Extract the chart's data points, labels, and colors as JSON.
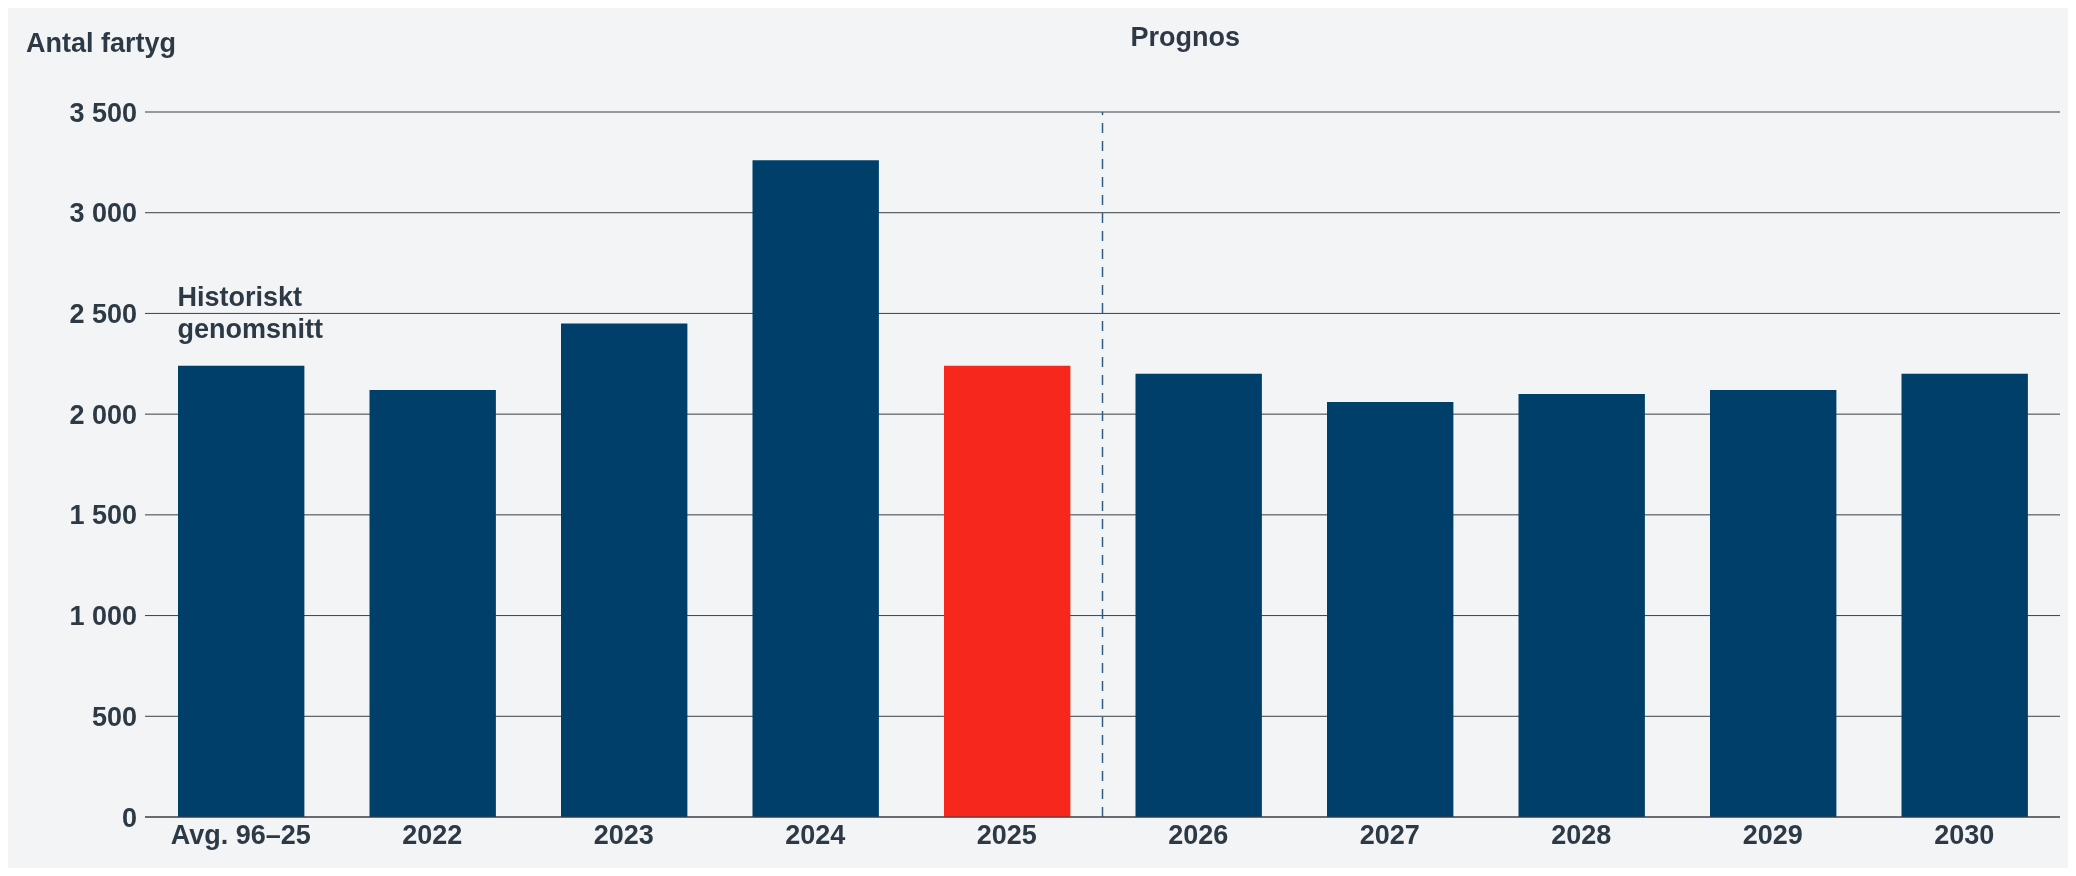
{
  "chart_data": {
    "type": "bar",
    "ylabel": "Antal fartyg",
    "categories": [
      "Avg. 96–25",
      "2022",
      "2023",
      "2024",
      "2025",
      "2026",
      "2027",
      "2028",
      "2029",
      "2030"
    ],
    "values": [
      2240,
      2120,
      2450,
      3260,
      2240,
      2200,
      2060,
      2100,
      2120,
      2200
    ],
    "colors": [
      "#003f69",
      "#003f69",
      "#003f69",
      "#003f69",
      "#f5281b",
      "#003f69",
      "#003f69",
      "#003f69",
      "#003f69",
      "#003f69"
    ],
    "ylim": [
      0,
      3500
    ],
    "yticks": [
      0,
      500,
      {
        "value": 1000,
        "label": "1 000"
      },
      {
        "value": 1500,
        "label": "1 500"
      },
      {
        "value": 2000,
        "label": "2 000"
      },
      {
        "value": 2500,
        "label": "2 500"
      },
      {
        "value": 3000,
        "label": "3 000"
      },
      {
        "value": 3500,
        "label": "3 500"
      }
    ],
    "grid": "y",
    "legend": false,
    "ref_lines": [
      {
        "axis": "x",
        "value": "2026",
        "label": "Prognos",
        "line_style": "dashed",
        "color": "#2c5f86"
      }
    ],
    "annotations": [
      {
        "text": "Historiskt genomsnitt",
        "x": "Avg. 96–25",
        "y": 2240
      }
    ]
  }
}
